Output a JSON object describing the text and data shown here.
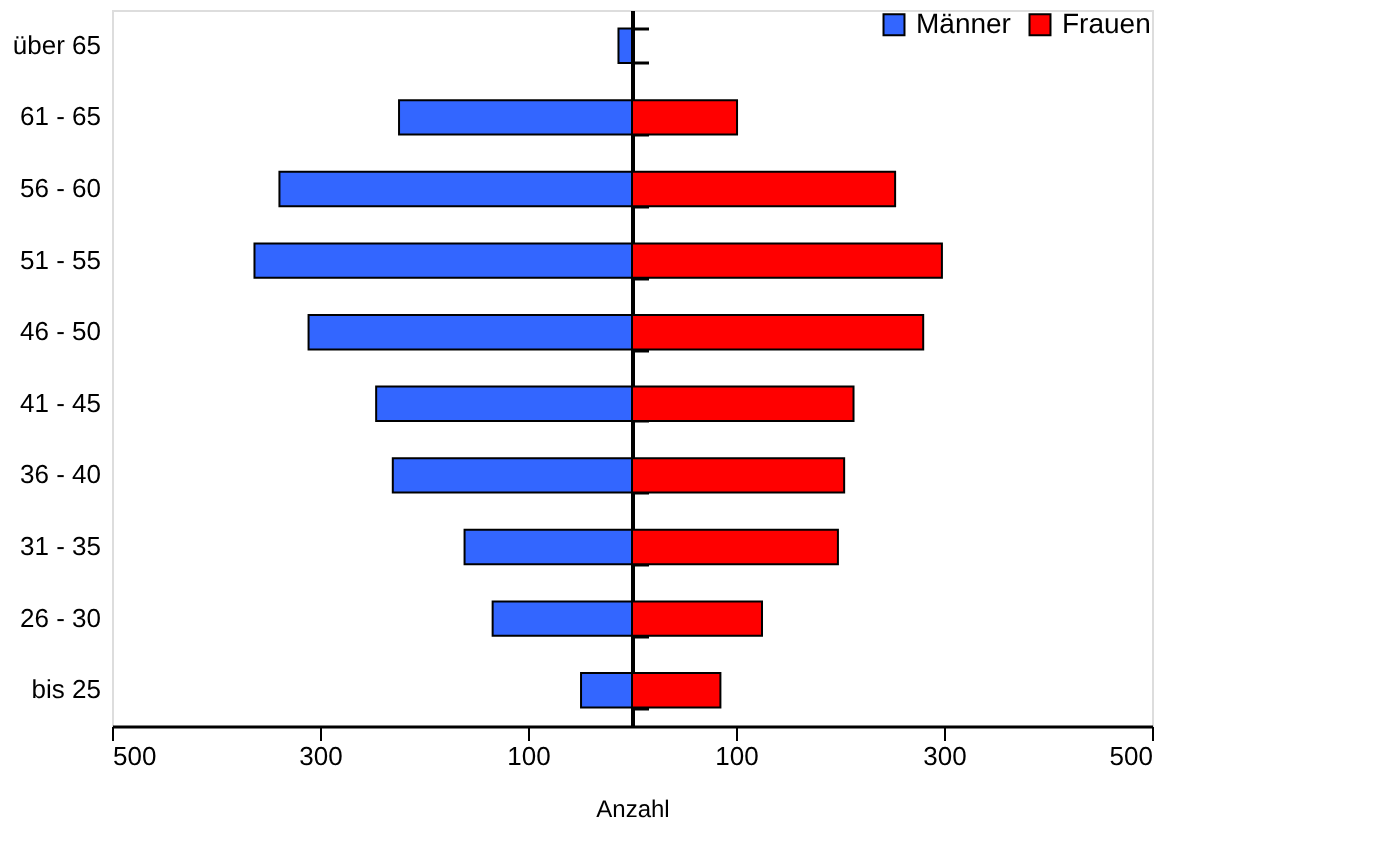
{
  "chart_data": {
    "type": "bar",
    "orientation": "horizontal",
    "xlabel": "Anzahl",
    "categories": [
      "über 65",
      "61 - 65",
      "56 - 60",
      "51 - 55",
      "46 - 50",
      "41 - 45",
      "36 - 40",
      "31 - 35",
      "26 - 30",
      "bis 25"
    ],
    "series": [
      {
        "name": "Männer",
        "color": "#3366ff",
        "values": [
          -13,
          -224,
          -339,
          -363,
          -311,
          -246,
          -230,
          -161,
          -134,
          -49
        ]
      },
      {
        "name": "Frauen",
        "color": "#ff0000",
        "values": [
          null,
          101,
          253,
          298,
          280,
          213,
          204,
          198,
          125,
          85
        ]
      }
    ],
    "xlim": [
      -500,
      500
    ],
    "xticks": [
      {
        "value": -500,
        "label": "500"
      },
      {
        "value": -300,
        "label": "300"
      },
      {
        "value": -100,
        "label": "100"
      },
      {
        "value": 100,
        "label": "100"
      },
      {
        "value": 300,
        "label": "300"
      },
      {
        "value": 500,
        "label": "500"
      }
    ],
    "stacked": true,
    "grid": false,
    "legend": "top right"
  }
}
